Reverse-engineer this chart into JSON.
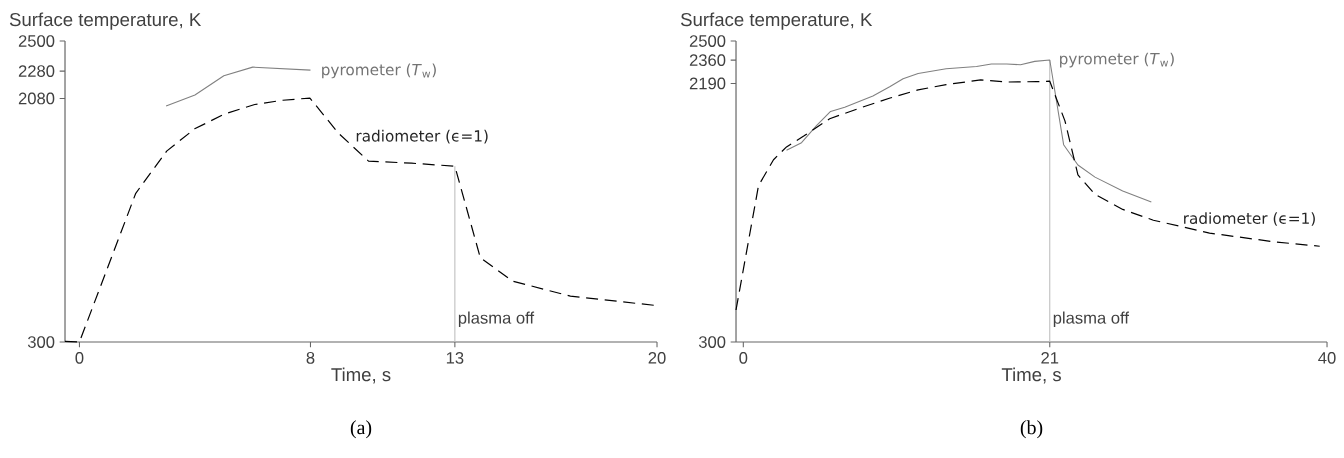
{
  "chart_data": [
    {
      "type": "line",
      "xlabel": "Time, s",
      "ylabel": "Surface temperature, K",
      "xlim": [
        -0.5,
        20
      ],
      "ylim": [
        300,
        2500
      ],
      "xticks": [
        0,
        8,
        13,
        20
      ],
      "yticks": [
        300,
        2080,
        2280,
        2500
      ],
      "annotations": [
        "(a)"
      ],
      "ref_lines": [
        {
          "axis": "x",
          "value": 13,
          "label": "plasma off",
          "color": "#bdbdbd"
        }
      ],
      "series": [
        {
          "name": "pyrometer (*T*$_{w}$)",
          "color": "#808080",
          "line_style": "solid",
          "x": [
            3,
            4,
            5,
            6,
            8
          ],
          "values": [
            2024,
            2105,
            2246,
            2309,
            2287
          ]
        },
        {
          "name": "radiometer   (ϵ=1)",
          "color": "#000000",
          "line_style": "dashed",
          "x": [
            -0.5,
            0,
            1.95,
            3.02,
            3.99,
            5.03,
            6.07,
            7.04,
            7.98,
            8.97,
            10.01,
            11.5,
            13,
            13.88,
            15,
            17,
            20
          ],
          "values": [
            305,
            300,
            1387,
            1695,
            1858,
            1967,
            2036,
            2067,
            2083,
            1826,
            1622,
            1607,
            1585,
            917,
            745,
            635,
            566
          ]
        }
      ]
    },
    {
      "type": "line",
      "xlabel": "Time, s",
      "ylabel": "Surface temperature, K",
      "xlim": [
        -0.5,
        40
      ],
      "ylim": [
        300,
        2500
      ],
      "xticks": [
        0,
        21,
        40
      ],
      "yticks": [
        300,
        2190,
        2360,
        2500
      ],
      "annotations": [
        "(b)"
      ],
      "ref_lines": [
        {
          "axis": "x",
          "value": 21,
          "label": "plasma off",
          "color": "#bdbdbd"
        }
      ],
      "series": [
        {
          "name": "pyrometer (*T*$_{w}$)",
          "color": "#808080",
          "line_style": "solid",
          "x": [
            2.96,
            3.99,
            5.03,
            5.98,
            6.95,
            8.88,
            10.06,
            10.95,
            11.98,
            13.9,
            15.98,
            17,
            18.05,
            19,
            19.97,
            21,
            21.95,
            22.93,
            24.1,
            26,
            27.96
          ],
          "values": [
            1701,
            1757,
            1883,
            1985,
            2016,
            2098,
            2167,
            2224,
            2262,
            2297,
            2313,
            2332,
            2332,
            2326,
            2351,
            2361,
            1742,
            1594,
            1505,
            1404,
            1323
          ]
        },
        {
          "name": "radiometer (ϵ=1)",
          "color": "#000000",
          "line_style": "dashed",
          "x": [
            -0.5,
            1.04,
            2.07,
            2.96,
            4.14,
            5.92,
            7.99,
            10.06,
            11.98,
            13.9,
            16.27,
            18.05,
            20.1,
            21,
            22.04,
            22.93,
            24.1,
            26,
            28.1,
            31.95,
            36.4,
            39.5
          ],
          "values": [
            534,
            1442,
            1632,
            1726,
            1805,
            1932,
            2010,
            2083,
            2143,
            2181,
            2216,
            2200,
            2203,
            2206,
            1916,
            1521,
            1379,
            1269,
            1190,
            1096,
            1032,
            1000
          ]
        }
      ]
    }
  ]
}
